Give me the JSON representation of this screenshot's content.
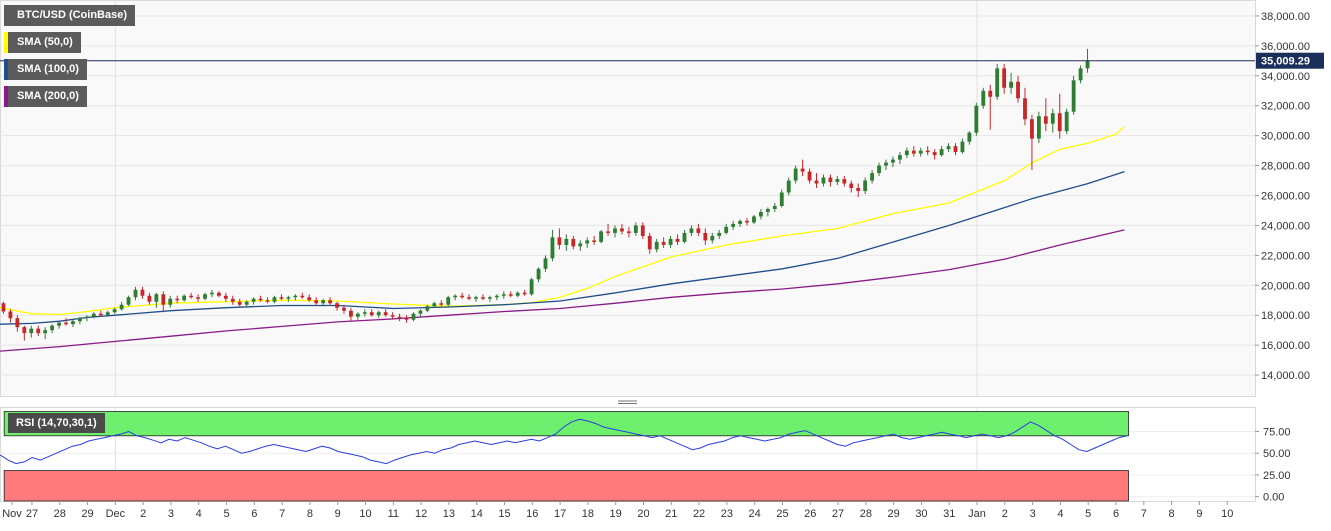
{
  "chart_data": {
    "type": "candlestick",
    "symbol_label": "BTC/USD (CoinBase)",
    "current_price_label": "35,009.29",
    "current_price": 35009.29,
    "y_ticks": [
      "38,000.00",
      "36,000.00",
      "34,000.00",
      "32,000.00",
      "30,000.00",
      "28,000.00",
      "26,000.00",
      "24,000.00",
      "22,000.00",
      "20,000.00",
      "18,000.00",
      "16,000.00",
      "14,000.00"
    ],
    "y_tick_values": [
      38000,
      36000,
      34000,
      32000,
      30000,
      28000,
      26000,
      24000,
      22000,
      20000,
      18000,
      16000,
      14000
    ],
    "ylim": [
      12600,
      39000
    ],
    "x_labels": [
      "Nov",
      "27",
      "28",
      "29",
      "Dec",
      "2",
      "3",
      "4",
      "5",
      "6",
      "7",
      "8",
      "9",
      "10",
      "11",
      "12",
      "13",
      "14",
      "15",
      "16",
      "17",
      "18",
      "19",
      "20",
      "21",
      "22",
      "23",
      "24",
      "25",
      "26",
      "27",
      "28",
      "29",
      "30",
      "31",
      "Jan",
      "2",
      "3",
      "4",
      "5",
      "6",
      "7",
      "8",
      "9",
      "10"
    ],
    "x_label_days": [
      26,
      27,
      28,
      29,
      30,
      31,
      32,
      33,
      34,
      35,
      36,
      37,
      38,
      39,
      40,
      41,
      42,
      43,
      44,
      45,
      46,
      47,
      48,
      49,
      50,
      51,
      52,
      53,
      54,
      55,
      56,
      57,
      58,
      59,
      60,
      61,
      62,
      63,
      64,
      65,
      66,
      67,
      68,
      69,
      70
    ],
    "xlim": [
      25.85,
      71.0
    ],
    "candles_per_day": 4,
    "start_day": 25.85,
    "candles": [
      [
        18800,
        18900,
        18100,
        18250
      ],
      [
        18250,
        18400,
        17500,
        17800
      ],
      [
        17800,
        18000,
        16900,
        17200
      ],
      [
        17200,
        17300,
        16300,
        16800
      ],
      [
        16800,
        17300,
        16500,
        17100
      ],
      [
        17100,
        17300,
        16600,
        16800
      ],
      [
        16800,
        17200,
        16400,
        17000
      ],
      [
        17000,
        17400,
        16800,
        17300
      ],
      [
        17300,
        17600,
        17100,
        17500
      ],
      [
        17500,
        17800,
        17300,
        17400
      ],
      [
        17400,
        17700,
        17200,
        17600
      ],
      [
        17600,
        17900,
        17400,
        17800
      ],
      [
        17800,
        18000,
        17600,
        17900
      ],
      [
        17900,
        18200,
        17800,
        18100
      ],
      [
        18100,
        18300,
        17900,
        18000
      ],
      [
        18000,
        18300,
        17900,
        18200
      ],
      [
        18200,
        18500,
        18100,
        18400
      ],
      [
        18400,
        18900,
        18300,
        18700
      ],
      [
        18700,
        19300,
        18600,
        19200
      ],
      [
        19200,
        19900,
        19000,
        19700
      ],
      [
        19700,
        19900,
        19100,
        19300
      ],
      [
        19300,
        19500,
        18700,
        18900
      ],
      [
        18900,
        19500,
        18500,
        19400
      ],
      [
        19400,
        19600,
        18200,
        18700
      ],
      [
        18700,
        19300,
        18500,
        19100
      ],
      [
        19100,
        19300,
        18800,
        19000
      ],
      [
        19000,
        19400,
        18900,
        19300
      ],
      [
        19300,
        19500,
        19100,
        19200
      ],
      [
        19200,
        19400,
        18900,
        19100
      ],
      [
        19100,
        19500,
        19000,
        19400
      ],
      [
        19400,
        19700,
        19200,
        19500
      ],
      [
        19500,
        19600,
        19200,
        19300
      ],
      [
        19300,
        19500,
        18900,
        19100
      ],
      [
        19100,
        19300,
        18700,
        18900
      ],
      [
        18900,
        19100,
        18500,
        18700
      ],
      [
        18700,
        19000,
        18600,
        18900
      ],
      [
        18900,
        19200,
        18700,
        19100
      ],
      [
        19100,
        19300,
        18900,
        19000
      ],
      [
        19000,
        19200,
        18800,
        18900
      ],
      [
        18900,
        19300,
        18800,
        19200
      ],
      [
        19200,
        19400,
        19000,
        19100
      ],
      [
        19100,
        19300,
        18900,
        19200
      ],
      [
        19200,
        19400,
        19000,
        19300
      ],
      [
        19300,
        19500,
        19100,
        19200
      ],
      [
        19200,
        19400,
        18900,
        19000
      ],
      [
        19000,
        19200,
        18700,
        18800
      ],
      [
        18800,
        19100,
        18600,
        19000
      ],
      [
        19000,
        19200,
        18700,
        18800
      ],
      [
        18800,
        18900,
        18300,
        18500
      ],
      [
        18500,
        18700,
        18100,
        18300
      ],
      [
        18300,
        18500,
        17600,
        17900
      ],
      [
        17900,
        18200,
        17700,
        18100
      ],
      [
        18100,
        18400,
        17900,
        18200
      ],
      [
        18200,
        18400,
        17900,
        18000
      ],
      [
        18000,
        18300,
        17800,
        18200
      ],
      [
        18200,
        18400,
        17900,
        18000
      ],
      [
        18000,
        18200,
        17700,
        17900
      ],
      [
        17900,
        18100,
        17600,
        17800
      ],
      [
        17800,
        18000,
        17500,
        17700
      ],
      [
        17700,
        18200,
        17600,
        18100
      ],
      [
        18100,
        18400,
        17900,
        18300
      ],
      [
        18300,
        18700,
        18200,
        18600
      ],
      [
        18600,
        18900,
        18500,
        18800
      ],
      [
        18800,
        19000,
        18600,
        18700
      ],
      [
        18700,
        19300,
        18600,
        19200
      ],
      [
        19200,
        19400,
        19000,
        19300
      ],
      [
        19300,
        19500,
        19100,
        19200
      ],
      [
        19200,
        19400,
        19000,
        19100
      ],
      [
        19100,
        19300,
        18900,
        19200
      ],
      [
        19200,
        19400,
        19000,
        19100
      ],
      [
        19100,
        19300,
        18900,
        19200
      ],
      [
        19200,
        19400,
        19000,
        19300
      ],
      [
        19300,
        19600,
        19100,
        19400
      ],
      [
        19400,
        19600,
        19200,
        19300
      ],
      [
        19300,
        19600,
        19200,
        19500
      ],
      [
        19500,
        19700,
        19300,
        19400
      ],
      [
        19400,
        20500,
        19300,
        20400
      ],
      [
        20400,
        21200,
        20200,
        21100
      ],
      [
        21100,
        22000,
        20900,
        21800
      ],
      [
        21800,
        23700,
        21600,
        23200
      ],
      [
        23200,
        23800,
        22400,
        22700
      ],
      [
        22700,
        23400,
        22300,
        23100
      ],
      [
        23100,
        23300,
        22400,
        22600
      ],
      [
        22600,
        23000,
        22300,
        22800
      ],
      [
        22800,
        23200,
        22500,
        23000
      ],
      [
        23000,
        23300,
        22700,
        22900
      ],
      [
        22900,
        23700,
        22800,
        23600
      ],
      [
        23600,
        24100,
        23300,
        23500
      ],
      [
        23500,
        24000,
        23200,
        23800
      ],
      [
        23800,
        24100,
        23400,
        23600
      ],
      [
        23600,
        23900,
        23200,
        23500
      ],
      [
        23500,
        24200,
        23300,
        24000
      ],
      [
        24000,
        24200,
        23100,
        23300
      ],
      [
        23300,
        23500,
        22100,
        22400
      ],
      [
        22400,
        23100,
        22200,
        22900
      ],
      [
        22900,
        23200,
        22500,
        22700
      ],
      [
        22700,
        23300,
        22500,
        23100
      ],
      [
        23100,
        23400,
        22700,
        22900
      ],
      [
        22900,
        23700,
        22800,
        23500
      ],
      [
        23500,
        24000,
        23300,
        23800
      ],
      [
        23800,
        24100,
        23300,
        23500
      ],
      [
        23500,
        23800,
        22700,
        23000
      ],
      [
        23000,
        23500,
        22800,
        23300
      ],
      [
        23300,
        23700,
        23100,
        23500
      ],
      [
        23500,
        24100,
        23400,
        23900
      ],
      [
        23900,
        24300,
        23700,
        24100
      ],
      [
        24100,
        24400,
        23900,
        24300
      ],
      [
        24300,
        24500,
        24000,
        24200
      ],
      [
        24200,
        24700,
        24100,
        24600
      ],
      [
        24600,
        25100,
        24400,
        24900
      ],
      [
        24900,
        25200,
        24600,
        25100
      ],
      [
        25100,
        25500,
        24900,
        25300
      ],
      [
        25300,
        26400,
        25200,
        26200
      ],
      [
        26200,
        27200,
        26000,
        27000
      ],
      [
        27000,
        28000,
        26800,
        27800
      ],
      [
        27800,
        28400,
        27300,
        27600
      ],
      [
        27600,
        27800,
        26800,
        27000
      ],
      [
        27000,
        27500,
        26500,
        26800
      ],
      [
        26800,
        27400,
        26600,
        27200
      ],
      [
        27200,
        27400,
        26600,
        26900
      ],
      [
        26900,
        27300,
        26700,
        27100
      ],
      [
        27100,
        27300,
        26600,
        26800
      ],
      [
        26800,
        27000,
        26200,
        26500
      ],
      [
        26500,
        26800,
        25900,
        26300
      ],
      [
        26300,
        27200,
        26100,
        27000
      ],
      [
        27000,
        27700,
        26800,
        27500
      ],
      [
        27500,
        28200,
        27300,
        28000
      ],
      [
        28000,
        28400,
        27700,
        28200
      ],
      [
        28200,
        28600,
        27900,
        28400
      ],
      [
        28400,
        28900,
        28100,
        28700
      ],
      [
        28700,
        29200,
        28500,
        29000
      ],
      [
        29000,
        29300,
        28600,
        28800
      ],
      [
        28800,
        29200,
        28600,
        29000
      ],
      [
        29000,
        29300,
        28700,
        28900
      ],
      [
        28900,
        29100,
        28400,
        28700
      ],
      [
        28700,
        29300,
        28600,
        29100
      ],
      [
        29100,
        29500,
        28900,
        29300
      ],
      [
        29300,
        29500,
        28700,
        28900
      ],
      [
        28900,
        29800,
        28800,
        29600
      ],
      [
        29600,
        30300,
        29400,
        30200
      ],
      [
        30200,
        32200,
        30000,
        32000
      ],
      [
        32000,
        33200,
        31800,
        33000
      ],
      [
        33000,
        33400,
        30400,
        32600
      ],
      [
        32600,
        34800,
        32400,
        34500
      ],
      [
        34500,
        34800,
        32800,
        33200
      ],
      [
        33200,
        34200,
        32800,
        33600
      ],
      [
        33600,
        34000,
        32200,
        32500
      ],
      [
        32500,
        33200,
        30700,
        31100
      ],
      [
        31100,
        31400,
        27700,
        29800
      ],
      [
        29800,
        31600,
        29500,
        31300
      ],
      [
        31300,
        32500,
        30300,
        30800
      ],
      [
        30800,
        31800,
        30200,
        31500
      ],
      [
        31500,
        32800,
        29800,
        30300
      ],
      [
        30300,
        31800,
        30100,
        31600
      ],
      [
        31600,
        34000,
        31400,
        33700
      ],
      [
        33700,
        34700,
        33500,
        34500
      ],
      [
        34500,
        35800,
        34200,
        35009
      ]
    ],
    "series": [
      {
        "name": "SMA (50,0)",
        "color": "#ffff00",
        "days": [
          25.85,
          27.0,
          28.0,
          29.0,
          30.0,
          32.0,
          34.0,
          36.0,
          38.0,
          40.0,
          42.0,
          44.0,
          45.0,
          46.0,
          47.0,
          48.0,
          50.0,
          52.0,
          54.0,
          56.0,
          58.0,
          60.0,
          62.0,
          63.0,
          64.0,
          65.0,
          66.0,
          66.3
        ],
        "values": [
          18500,
          18100,
          18050,
          18250,
          18500,
          18800,
          18900,
          19000,
          18950,
          18750,
          18600,
          18700,
          18850,
          19200,
          19800,
          20600,
          21900,
          22700,
          23300,
          23800,
          24800,
          25500,
          27000,
          28200,
          29100,
          29500,
          30100,
          30600
        ]
      },
      {
        "name": "SMA (100,0)",
        "color": "#1f4e8c",
        "days": [
          25.85,
          27.0,
          28.0,
          29.0,
          30.0,
          32.0,
          34.0,
          36.0,
          38.0,
          40.0,
          42.0,
          44.0,
          46.0,
          48.0,
          50.0,
          52.0,
          54.0,
          56.0,
          58.0,
          60.0,
          62.0,
          63.0,
          64.0,
          65.0,
          66.3
        ],
        "values": [
          17400,
          17450,
          17600,
          17850,
          18000,
          18300,
          18500,
          18650,
          18650,
          18450,
          18550,
          18700,
          18950,
          19500,
          20100,
          20600,
          21100,
          21800,
          22900,
          24000,
          25200,
          25800,
          26300,
          26800,
          27600
        ]
      },
      {
        "name": "SMA (200,0)",
        "color": "#8b1a89",
        "days": [
          25.85,
          28.0,
          30.0,
          32.0,
          34.0,
          36.0,
          38.0,
          40.0,
          42.0,
          44.0,
          46.0,
          48.0,
          50.0,
          52.0,
          54.0,
          56.0,
          58.0,
          60.0,
          62.0,
          64.0,
          66.3
        ],
        "values": [
          15600,
          15900,
          16250,
          16600,
          16950,
          17250,
          17550,
          17750,
          18000,
          18250,
          18450,
          18800,
          19200,
          19500,
          19750,
          20100,
          20550,
          21050,
          21750,
          22700,
          23700
        ]
      }
    ],
    "rsi": {
      "label": "RSI (14,70,30,1)",
      "overbought": 70,
      "oversold": 30,
      "ylim": [
        -5,
        102
      ],
      "y_ticks": [
        "75.00",
        "50.00",
        "25.00",
        "0.00"
      ],
      "y_tick_values": [
        75,
        50,
        25,
        0
      ],
      "color": "#2a3de0",
      "values": [
        48,
        42,
        38,
        40,
        45,
        42,
        46,
        50,
        54,
        58,
        60,
        64,
        66,
        68,
        70,
        72,
        75,
        70,
        68,
        65,
        62,
        66,
        64,
        68,
        65,
        62,
        58,
        55,
        58,
        54,
        50,
        52,
        55,
        58,
        60,
        58,
        56,
        54,
        52,
        55,
        58,
        56,
        52,
        50,
        48,
        46,
        42,
        40,
        38,
        42,
        45,
        48,
        50,
        52,
        50,
        54,
        56,
        60,
        62,
        64,
        62,
        60,
        62,
        64,
        62,
        64,
        66,
        64,
        68,
        72,
        80,
        86,
        89,
        87,
        84,
        80,
        78,
        76,
        74,
        72,
        70,
        68,
        70,
        66,
        62,
        58,
        54,
        56,
        60,
        62,
        64,
        68,
        70,
        68,
        66,
        64,
        66,
        68,
        72,
        74,
        76,
        72,
        68,
        64,
        60,
        58,
        62,
        64,
        66,
        68,
        70,
        72,
        68,
        66,
        68,
        70,
        72,
        74,
        72,
        70,
        68,
        70,
        72,
        70,
        68,
        70,
        74,
        80,
        86,
        82,
        76,
        70,
        66,
        60,
        54,
        52,
        56,
        60,
        64,
        68,
        70
      ]
    }
  },
  "legend": [
    {
      "label": "SMA (50,0)",
      "color": "#ffff00"
    },
    {
      "label": "SMA (100,0)",
      "color": "#1f4e8c"
    },
    {
      "label": "SMA (200,0)",
      "color": "#8b1a89"
    }
  ],
  "colors": {
    "up_candle": "#2e7d32",
    "down_candle": "#c62828",
    "price_line": "#1a2f5a",
    "overbought_zone": "#6ef06e",
    "oversold_zone": "#ff7b7b"
  }
}
